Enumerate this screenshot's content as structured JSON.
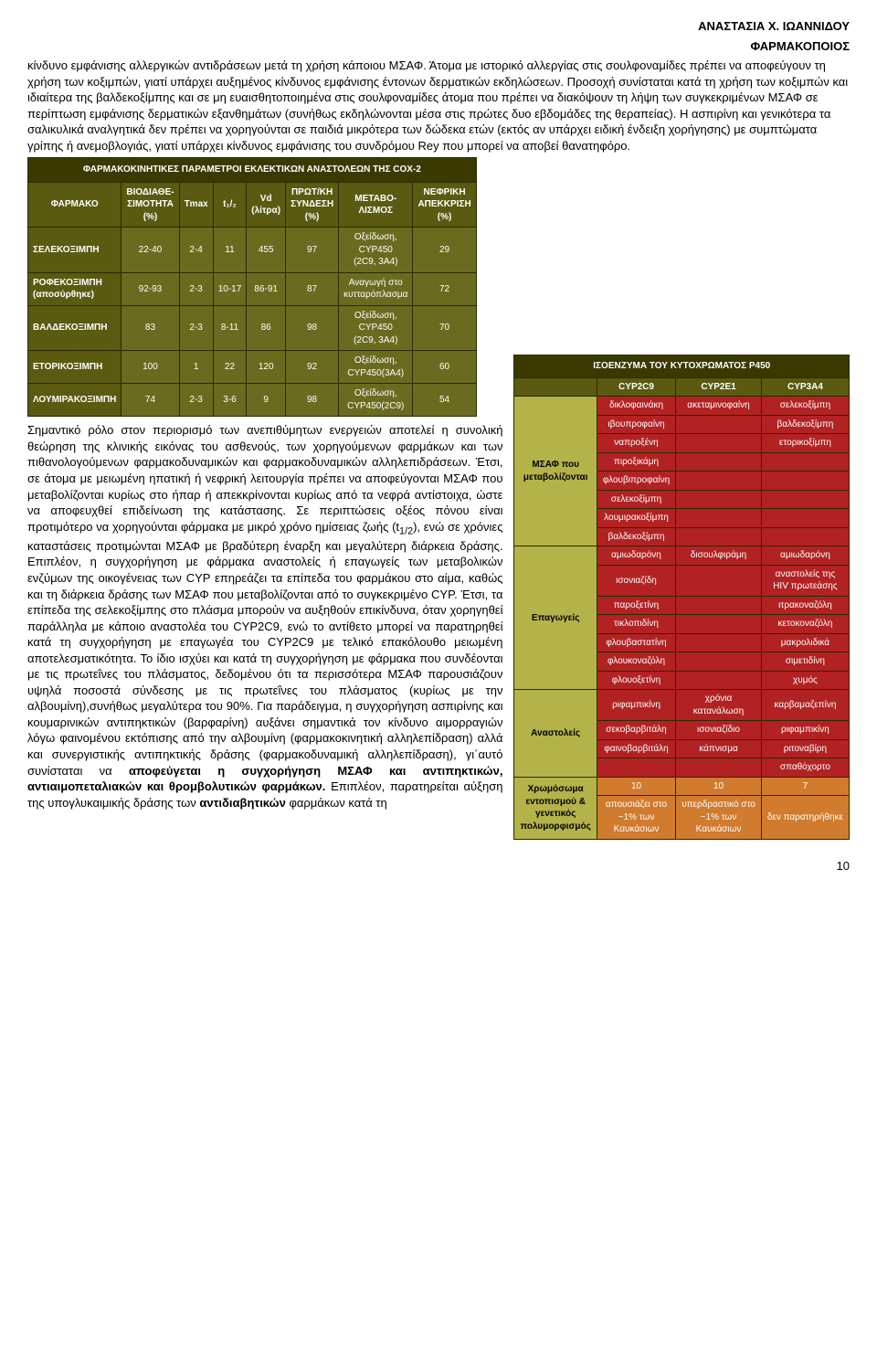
{
  "header": {
    "line1": "ΑΝΑΣΤΑΣΙΑ Χ. ΙΩΑΝΝΙΔΟΥ",
    "line2": "ΦΑΡΜΑΚΟΠΟΙΟΣ"
  },
  "paragraph1": "κίνδυνο εμφάνισης αλλεργικών αντιδράσεων μετά τη χρήση κάποιου ΜΣΑΦ. Άτομα με ιστορικό αλλεργίας στις σουλφοναμίδες πρέπει να αποφεύγουν τη χρήση των κοξιμπών, γιατί υπάρχει αυξημένος κίνδυνος εμφάνισης έντονων δερματικών εκδηλώσεων. Προσοχή συνίσταται κατά τη χρήση των κοξιμπών και ιδιαίτερα της βαλδεκοξίμπης και σε μη ευαισθητοποιημένα στις σουλφοναμίδες άτομα που πρέπει να διακόψουν τη λήψη των συγκεκριμένων ΜΣΑΦ σε περίπτωση εμφάνισης δερματικών εξανθημάτων (συνήθως εκδηλώνονται μέσα στις πρώτες δυο εβδομάδες της θεραπείας).  Η ασπιρίνη και γενικότερα τα σαλικυλικά αναλγητικά δεν πρέπει να χορηγούνται σε παιδιά μικρότερα των δώδεκα ετών (εκτός αν υπάρχει ειδική ένδειξη χορήγησης) με συμπτώματα γρίπης ή ανεμοβλογιάς, γιατί υπάρχει κίνδυνος εμφάνισης του συνδρόμου Rey που μπορεί να αποβεί θανατηφόρο.",
  "paragraph2_part1": "Σημαντικό ρόλο στον περιορισμό των ανεπιθύμητων ενεργειών αποτελεί η συνολική θεώρηση της κλινικής εικόνας του ασθενούς, των χορηγούμενων φαρμάκων και των πιθανολογούμενων φαρμακοδυναμικών και φαρμακοδυναμικών αλληλεπιδράσεων. Έτσι, σε άτομα με μειωμένη ηπατική ή νεφρική λειτουργία πρέπει να αποφεύγονται ΜΣΑΦ που μεταβολίζονται κυρίως στο ήπαρ ή απεκκρίνονται κυρίως από τα νεφρά αντίστοιχα, ώστε να αποφευχθεί επιδείνωση της κατάστασης. Σε περιπτώσεις οξέος πόνου είναι προτιμότερο να χορηγούνται φάρμακα με μικρό χρόνο ημίσειας ζωής (t",
  "paragraph2_sub": "1/2",
  "paragraph2_part2": "), ενώ σε χρόνιες καταστάσεις προτιμώνται ΜΣΑΦ με βραδύτερη έναρξη και μεγαλύτερη διάρκεια δράσης. Επιπλέον, η συγχορήγηση με φάρμακα αναστολείς ή επαγωγείς των μεταβολικών ενζύμων της οικογένειας των CYP επηρεάζει τα επίπεδα του φαρμάκου στο αίμα, καθώς και τη διάρκεια δράσης των ΜΣΑΦ που μεταβολίζονται από το συγκεκριμένο CYP. Έτσι, τα επίπεδα της σελεκοξίμπης στο πλάσμα μπορούν να αυξηθούν επικίνδυνα, όταν χορηγηθεί παράλληλα με κάποιο αναστολέα του CYP2C9, ενώ το αντίθετο μπορεί να παρατηρηθεί κατά τη συγχορήγηση με επαγωγέα του CYP2C9 με τελικό επακόλουθο μειωμένη αποτελεσματικότητα. Το ίδιο ισχύει και κατά τη συγχορήγηση με φάρμακα που συνδέονται με τις πρωτεΐνες του πλάσματος, δεδομένου ότι τα περισσότερα ΜΣΑΦ παρουσιάζουν υψηλά ποσοστά σύνδεσης με τις πρωτεΐνες του πλάσματος (κυρίως με την αλβουμίνη),συνήθως μεγαλύτερα του 90%. Για παράδειγμα, η συγχορήγηση ασπιρίνης και κουμαρινικών αντιπηκτικών (βαρφαρίνη) αυξάνει σημαντικά τον κίνδυνο αιμορραγιών λόγω φαινομένου εκτόπισης από την αλβουμίνη (φαρμακοκινητική αλληλεπίδραση) αλλά και συνεργιστικής αντιπηκτικής δράσης (φαρμακοδυναμική αλληλεπίδραση), γι΄αυτό συνίσταται να ",
  "bold_phrase_1": "αποφεύγεται η συγχορήγηση ΜΣΑΦ και αντιπηκτικών, αντιαιμοπεταλιακών και θρομβολυτικών φαρμάκων.",
  "paragraph2_part3": " Επιπλέον, παρατηρείται αύξηση της υπογλυκαιμικής δράσης των ",
  "bold_phrase_2": "αντιδιαβητικών",
  "paragraph2_part4": " φαρμάκων κατά τη",
  "table1": {
    "title": "ΦΑΡΜΑΚΟΚΙΝΗΤΙΚΕΣ ΠΑΡΑΜΕΤΡΟΙ ΕΚΛΕΚΤΙΚΩΝ ΑΝΑΣΤΟΛΕΩΝ ΤΗΣ COX-2",
    "columns": [
      "ΦΑΡΜΑΚΟ",
      "ΒΙΟΔΙΑΘΕ-\nΣΙΜΟΤΗΤΑ\n(%)",
      "Tmax",
      "t₁/₂",
      "Vd\n(λίτρα)",
      "ΠΡΩΤ/ΚΗ\nΣΥΝΔΕΣΗ\n(%)",
      "ΜΕΤΑΒΟ-\nΛΙΣΜΟΣ",
      "ΝΕΦΡΙΚΗ\nΑΠΕΚΚΡΙΣΗ\n(%)"
    ],
    "rows": [
      {
        "label": "ΣΕΛΕΚΟΞΙΜΠΗ",
        "cells": [
          "22-40",
          "2-4",
          "11",
          "455",
          "97",
          "Οξείδωση,\nCYP450\n(2C9, 3A4)",
          "29"
        ]
      },
      {
        "label": "ΡΟΦΕΚΟΞΙΜΠΗ\n(αποσύρθηκε)",
        "cells": [
          "92-93",
          "2-3",
          "10-17",
          "86-91",
          "87",
          "Αναγωγή στο\nκυτταρόπλασμα",
          "72"
        ]
      },
      {
        "label": "ΒΑΛΔΕΚΟΞΙΜΠΗ",
        "cells": [
          "83",
          "2-3",
          "8-11",
          "86",
          "98",
          "Οξείδωση,\nCYP450\n(2C9, 3A4)",
          "70"
        ]
      },
      {
        "label": "ΕΤΟΡΙΚΟΞΙΜΠΗ",
        "cells": [
          "100",
          "1",
          "22",
          "120",
          "92",
          "Οξείδωση,\nCYP450(3A4)",
          "60"
        ]
      },
      {
        "label": "ΛΟΥΜΙΡΑΚΟΞΙΜΠΗ",
        "cells": [
          "74",
          "2-3",
          "3-6",
          "9",
          "98",
          "Οξείδωση,\nCYP450(2C9)",
          "54"
        ]
      }
    ]
  },
  "table2": {
    "title": "ΙΣΟΕΝΖΥΜΑ ΤΟΥ ΚΥΤΟΧΡΩΜΑΤΟΣ P450",
    "columns": [
      "",
      "CYP2C9",
      "CYP2E1",
      "CYP3A4"
    ],
    "sections": [
      {
        "label": "ΜΣΑΦ που\nμεταβολίζονται",
        "rows": [
          [
            "δικλοφαινάκη",
            "ακεταμινοφαίνη",
            "σελεκοξίμπη"
          ],
          [
            "ιβουπροφαίνη",
            "",
            "βαλδεκοξίμπη"
          ],
          [
            "ναπροξένη",
            "",
            "ετορικοξίμπη"
          ],
          [
            "πιροξικάμη",
            "",
            ""
          ],
          [
            "φλουβιπροφαίνη",
            "",
            ""
          ],
          [
            "σελεκοξίμπη",
            "",
            ""
          ],
          [
            "λουμιρακοξίμπη",
            "",
            ""
          ],
          [
            "βαλδεκοξίμπη",
            "",
            ""
          ]
        ]
      },
      {
        "label": "Επαγωγείς",
        "rows": [
          [
            "αμιωδαρόνη",
            "δισουλφιράμη",
            "αμιωδαρόνη"
          ],
          [
            "ισονιαζίδη",
            "",
            "αναστολείς της\nHIV πρωτεάσης"
          ],
          [
            "παροξετίνη",
            "",
            "ιτρακοναζόλη"
          ],
          [
            "τικλοπιδίνη",
            "",
            "κετοκοναζόλη"
          ],
          [
            "φλουβαστατίνη",
            "",
            "μακρολιδικά"
          ],
          [
            "φλουκοναζόλη",
            "",
            "σιμετιδίνη"
          ],
          [
            "φλουοξετίνη",
            "",
            "χυμός"
          ]
        ]
      },
      {
        "label": "Αναστολείς",
        "rows": [
          [
            "ριφαμπικίνη",
            "χρόνια\nκατανάλωση",
            "καρβαμαζεπίνη"
          ],
          [
            "σεκοβαρβιτάλη",
            "ισονιαζίδιο",
            "ριφαμπικίνη"
          ],
          [
            "φαινοβαρβιτάλη",
            "κάπνισμα",
            "ριτοναβίρη"
          ],
          [
            "",
            "",
            "σπαθόχορτο"
          ]
        ]
      },
      {
        "label": "Χρωμόσωμα\nεντοπισμού &\nγενετικός\nπολυμορφισμός",
        "rows": [
          [
            "10",
            "10",
            "7"
          ],
          [
            "απουσιάζει στο\n~1% των\nΚαυκάσιων",
            "υπερδραστικό στο\n~1% των\nΚαυκάσιων",
            "δεν παρατηρήθηκε"
          ]
        ]
      }
    ]
  },
  "page_number": "10"
}
